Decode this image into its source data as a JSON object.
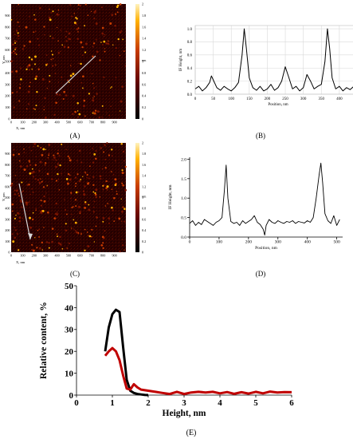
{
  "panels": {
    "A": {
      "label": "(A)",
      "xlabel": "X, nm",
      "ylabel": "Y, nm",
      "ticks": [
        "0",
        "100",
        "200",
        "300",
        "400",
        "500",
        "600",
        "700",
        "800",
        "900"
      ],
      "colorbar": [
        "0",
        "0.2",
        "0.4",
        "0.6",
        "0.8",
        "1",
        "1.2",
        "1.4",
        "1.6",
        "1.8",
        "2"
      ],
      "colorbar_unit": "nm"
    },
    "C": {
      "label": "(C)",
      "xlabel": "X, nm",
      "ylabel": "Y, nm",
      "ticks": [
        "0",
        "100",
        "200",
        "300",
        "400",
        "500",
        "600",
        "700",
        "800",
        "900"
      ],
      "colorbar": [
        "0",
        "0.2",
        "0.4",
        "0.6",
        "0.8",
        "1",
        "1.2",
        "1.4",
        "1.6",
        "1.8",
        "2"
      ],
      "colorbar_unit": "nm"
    }
  },
  "chart_data": [
    {
      "id": "B",
      "type": "line",
      "panel_label": "(B)",
      "xlabel": "Position, nm",
      "ylabel": "IF Height, nm",
      "xlim": [
        0,
        460
      ],
      "ylim": [
        0,
        1.05
      ],
      "xticks": [
        0,
        50,
        100,
        150,
        200,
        250,
        300,
        350,
        400,
        450
      ],
      "yticks": [
        0,
        0.2,
        0.4,
        0.6,
        0.8,
        1.0
      ],
      "color": "#000000",
      "x": [
        0,
        10,
        20,
        30,
        40,
        45,
        50,
        60,
        70,
        80,
        90,
        100,
        110,
        120,
        130,
        136,
        142,
        150,
        160,
        170,
        180,
        190,
        200,
        210,
        220,
        230,
        240,
        250,
        260,
        270,
        280,
        290,
        300,
        310,
        320,
        330,
        340,
        350,
        360,
        367,
        373,
        380,
        390,
        400,
        410,
        420,
        430,
        440,
        450
      ],
      "y": [
        0.08,
        0.12,
        0.05,
        0.1,
        0.18,
        0.28,
        0.22,
        0.1,
        0.06,
        0.12,
        0.08,
        0.05,
        0.1,
        0.18,
        0.6,
        1.0,
        0.7,
        0.25,
        0.1,
        0.06,
        0.12,
        0.05,
        0.08,
        0.15,
        0.06,
        0.1,
        0.2,
        0.42,
        0.25,
        0.08,
        0.12,
        0.05,
        0.1,
        0.3,
        0.2,
        0.08,
        0.12,
        0.15,
        0.5,
        1.0,
        0.7,
        0.25,
        0.08,
        0.12,
        0.05,
        0.1,
        0.07,
        0.12,
        0.08
      ]
    },
    {
      "id": "D",
      "type": "line",
      "panel_label": "(D)",
      "xlabel": "Position, nm",
      "ylabel": "IF Height, nm",
      "xlim": [
        0,
        520
      ],
      "ylim": [
        0,
        2.05
      ],
      "xticks": [
        0,
        100,
        200,
        300,
        400,
        500
      ],
      "yticks": [
        0,
        0.5,
        1.0,
        1.5,
        2.0
      ],
      "color": "#000000",
      "x": [
        0,
        10,
        20,
        30,
        40,
        50,
        60,
        70,
        80,
        90,
        100,
        110,
        118,
        124,
        130,
        140,
        150,
        160,
        170,
        180,
        190,
        200,
        210,
        220,
        230,
        240,
        250,
        255,
        260,
        270,
        280,
        290,
        300,
        310,
        320,
        330,
        340,
        350,
        360,
        370,
        380,
        390,
        400,
        410,
        420,
        430,
        440,
        446,
        452,
        460,
        470,
        480,
        490,
        500,
        510
      ],
      "y": [
        0.35,
        0.42,
        0.3,
        0.38,
        0.32,
        0.45,
        0.4,
        0.35,
        0.3,
        0.38,
        0.42,
        0.5,
        1.2,
        1.85,
        1.0,
        0.4,
        0.35,
        0.38,
        0.3,
        0.42,
        0.35,
        0.4,
        0.45,
        0.55,
        0.38,
        0.32,
        0.2,
        0.05,
        0.3,
        0.45,
        0.38,
        0.35,
        0.42,
        0.38,
        0.35,
        0.4,
        0.38,
        0.42,
        0.35,
        0.4,
        0.38,
        0.36,
        0.42,
        0.38,
        0.5,
        1.0,
        1.6,
        1.9,
        1.4,
        0.6,
        0.42,
        0.35,
        0.55,
        0.3,
        0.45
      ]
    },
    {
      "id": "E",
      "type": "line",
      "panel_label": "(E)",
      "xlabel": "Height, nm",
      "ylabel": "Relative content, %",
      "xlim": [
        0,
        6
      ],
      "ylim": [
        0,
        50
      ],
      "xticks": [
        0,
        1,
        2,
        3,
        4,
        5,
        6
      ],
      "yticks": [
        0,
        10,
        20,
        30,
        40,
        50
      ],
      "series": [
        {
          "color": "#000000",
          "x": [
            0.8,
            0.9,
            1.0,
            1.1,
            1.2,
            1.3,
            1.4,
            1.5,
            1.6,
            1.7,
            1.8,
            1.9,
            2.0
          ],
          "y": [
            20,
            31,
            37,
            39,
            38,
            22,
            7,
            2,
            1,
            0.5,
            0.3,
            0.1,
            0
          ]
        },
        {
          "color": "#c00000",
          "x": [
            0.8,
            0.9,
            1.0,
            1.1,
            1.2,
            1.3,
            1.4,
            1.5,
            1.6,
            1.7,
            1.8,
            2.0,
            2.2,
            2.4,
            2.6,
            2.8,
            3.0,
            3.2,
            3.4,
            3.6,
            3.8,
            4.0,
            4.2,
            4.4,
            4.6,
            4.8,
            5.0,
            5.2,
            5.4,
            5.6,
            5.8,
            6.0
          ],
          "y": [
            18,
            20,
            21.5,
            20,
            16,
            9,
            3,
            2.5,
            5,
            3.5,
            2.5,
            2,
            1.5,
            1,
            0.5,
            1.5,
            0.5,
            1.2,
            1.5,
            1.2,
            1.5,
            0.8,
            1.4,
            0.6,
            1.3,
            0.7,
            1.5,
            0.8,
            1.6,
            1.2,
            1.4,
            1.3
          ]
        }
      ]
    }
  ],
  "colors": {
    "afm_base": "#2a0000",
    "afm_spot": "#ffb000",
    "scan_line": "#d8d8d8"
  }
}
